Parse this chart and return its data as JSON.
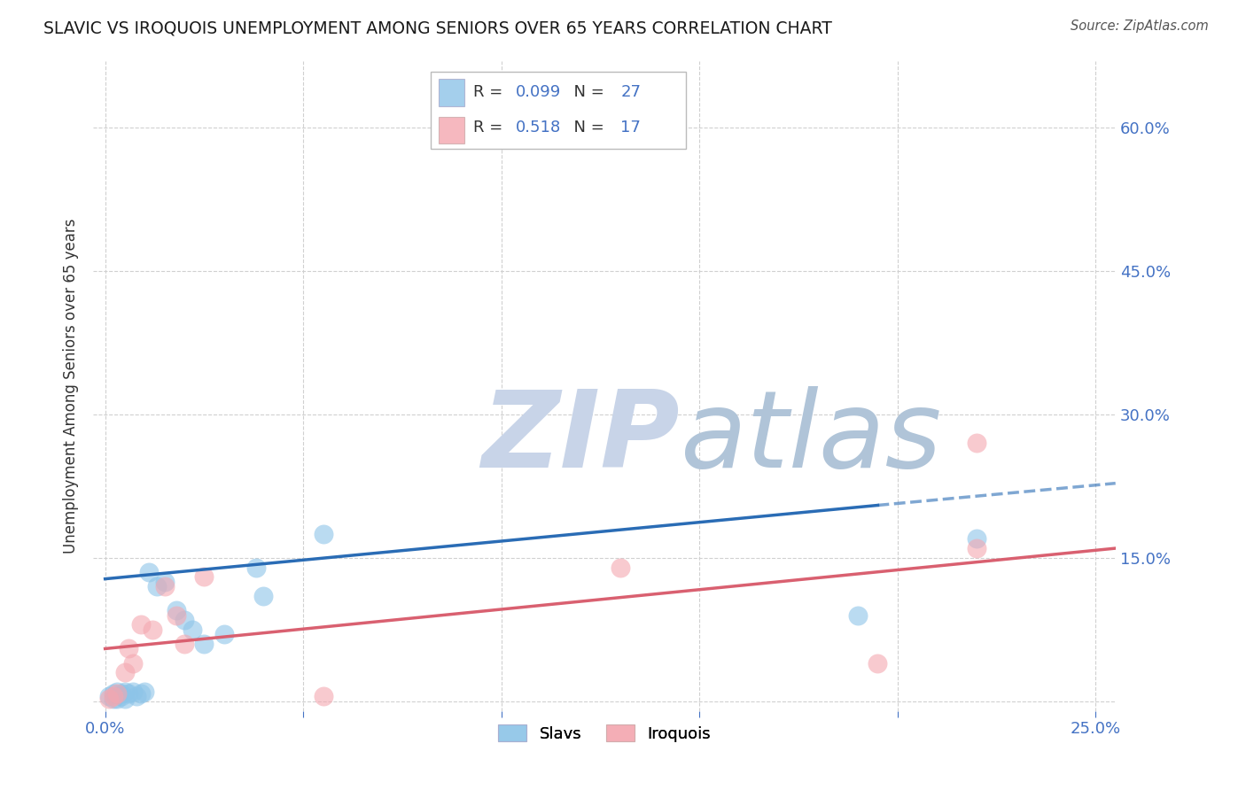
{
  "title": "SLAVIC VS IROQUOIS UNEMPLOYMENT AMONG SENIORS OVER 65 YEARS CORRELATION CHART",
  "source": "Source: ZipAtlas.com",
  "ylabel_label": "Unemployment Among Seniors over 65 years",
  "x_ticks": [
    0.0,
    0.05,
    0.1,
    0.15,
    0.2,
    0.25
  ],
  "y_ticks": [
    0.0,
    0.15,
    0.3,
    0.45,
    0.6
  ],
  "y_tick_labels": [
    "",
    "15.0%",
    "30.0%",
    "45.0%",
    "60.0%"
  ],
  "xlim": [
    -0.003,
    0.255
  ],
  "ylim": [
    -0.01,
    0.67
  ],
  "slavs_x": [
    0.001,
    0.002,
    0.002,
    0.003,
    0.003,
    0.004,
    0.004,
    0.005,
    0.005,
    0.006,
    0.007,
    0.008,
    0.009,
    0.01,
    0.011,
    0.013,
    0.015,
    0.018,
    0.02,
    0.022,
    0.025,
    0.03,
    0.038,
    0.04,
    0.055,
    0.19,
    0.22
  ],
  "slavs_y": [
    0.005,
    0.003,
    0.008,
    0.003,
    0.01,
    0.005,
    0.008,
    0.003,
    0.01,
    0.008,
    0.01,
    0.005,
    0.008,
    0.01,
    0.135,
    0.12,
    0.125,
    0.095,
    0.085,
    0.075,
    0.06,
    0.07,
    0.14,
    0.11,
    0.175,
    0.09,
    0.17
  ],
  "iroquois_x": [
    0.001,
    0.002,
    0.003,
    0.005,
    0.006,
    0.007,
    0.009,
    0.012,
    0.015,
    0.018,
    0.02,
    0.025,
    0.055,
    0.13,
    0.195,
    0.22,
    0.22
  ],
  "iroquois_y": [
    0.003,
    0.005,
    0.008,
    0.03,
    0.055,
    0.04,
    0.08,
    0.075,
    0.12,
    0.09,
    0.06,
    0.13,
    0.005,
    0.14,
    0.04,
    0.27,
    0.16
  ],
  "slavs_color": "#8dc4e8",
  "iroquois_color": "#f4a7b0",
  "slavs_R": "0.099",
  "slavs_N": "27",
  "iroquois_R": "0.518",
  "iroquois_N": "17",
  "trend_slavs_x0": 0.0,
  "trend_slavs_y0": 0.128,
  "trend_slavs_x1": 0.195,
  "trend_slavs_y1": 0.205,
  "trend_slavs_dash_x0": 0.195,
  "trend_slavs_dash_y0": 0.205,
  "trend_slavs_dash_x1": 0.255,
  "trend_slavs_dash_y1": 0.228,
  "trend_iroquois_x0": 0.0,
  "trend_iroquois_y0": 0.055,
  "trend_iroquois_x1": 0.255,
  "trend_iroquois_y1": 0.16,
  "bg_color": "#ffffff",
  "grid_color": "#d0d0d0",
  "watermark_zip_color": "#c8d4e8",
  "watermark_atlas_color": "#b8c8d8"
}
